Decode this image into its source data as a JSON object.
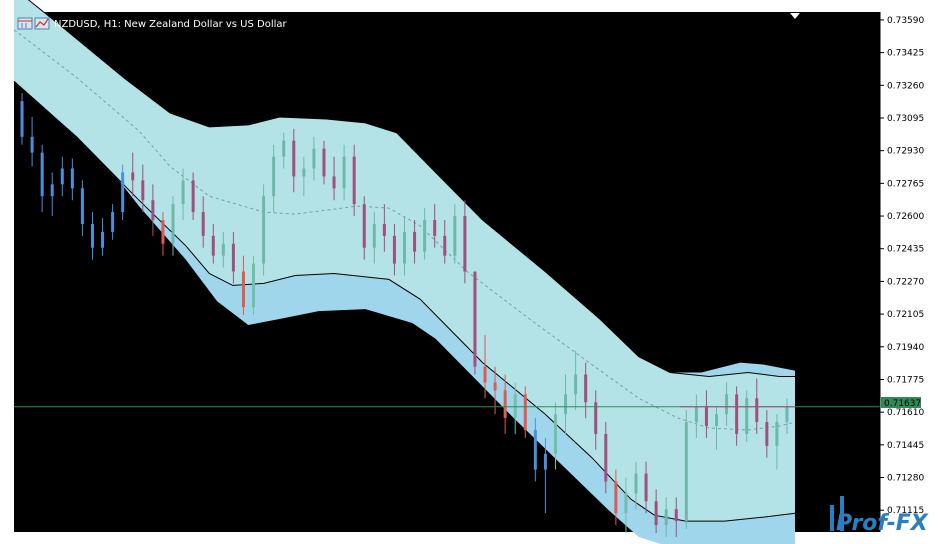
{
  "header": {
    "symbol_info": "NZDUSD, H1:  New Zealand Dollar vs US Dollar"
  },
  "logo": {
    "text": "Prof-FX"
  },
  "icons": {
    "toolbar": "window-icon",
    "chart": "chart-icon"
  },
  "colors": {
    "background": "#000000",
    "outer_band": "#9fd6ec",
    "inner_band": "#b3e3e7",
    "band_line": "#000000",
    "middle_line": "#7c9da0",
    "bull": "#6fbfaa",
    "bear": "#e05a4e",
    "bull_inside": "#6fb7a8",
    "bear_inside": "#a0507a",
    "blue_candle": "#4a90d8",
    "bid_line": "#2e8b57",
    "price_line": "#a0507a",
    "axis_bg": "#ffffff",
    "logo": "#2a7fc1"
  },
  "chart_data": {
    "type": "candlestick",
    "symbol": "NZDUSD",
    "timeframe": "H1",
    "y_ticks": [
      "0.73590",
      "0.73425",
      "0.73260",
      "0.73095",
      "0.72930",
      "0.72765",
      "0.72600",
      "0.72435",
      "0.72270",
      "0.72105",
      "0.71940",
      "0.71775",
      "0.71610",
      "0.71445",
      "0.71280",
      "0.71115"
    ],
    "ylim": [
      0.71005,
      0.7363
    ],
    "current_price": "0.71637",
    "current_price_value": 0.71637,
    "bands": {
      "middle": [
        [
          0,
          0.7354
        ],
        [
          40,
          0.733
        ],
        [
          80,
          0.7303
        ],
        [
          100,
          0.7285
        ],
        [
          125,
          0.727
        ],
        [
          160,
          0.7262
        ],
        [
          180,
          0.7261
        ],
        [
          200,
          0.7263
        ],
        [
          220,
          0.7265
        ],
        [
          240,
          0.7264
        ],
        [
          260,
          0.7255
        ],
        [
          290,
          0.7232
        ],
        [
          330,
          0.7208
        ],
        [
          370,
          0.7185
        ],
        [
          400,
          0.7168
        ],
        [
          425,
          0.7158
        ],
        [
          445,
          0.7153
        ],
        [
          470,
          0.7152
        ],
        [
          490,
          0.7154
        ],
        [
          500,
          0.7156
        ]
      ],
      "inner_upper": [
        [
          0,
          0.7375
        ],
        [
          30,
          0.7356
        ],
        [
          70,
          0.733
        ],
        [
          100,
          0.7312
        ],
        [
          125,
          0.7305
        ],
        [
          150,
          0.7306
        ],
        [
          170,
          0.731
        ],
        [
          200,
          0.7309
        ],
        [
          225,
          0.7307
        ],
        [
          245,
          0.7302
        ],
        [
          270,
          0.7282
        ],
        [
          300,
          0.7258
        ],
        [
          340,
          0.7232
        ],
        [
          375,
          0.7208
        ],
        [
          400,
          0.7189
        ],
        [
          420,
          0.7181
        ],
        [
          445,
          0.7179
        ],
        [
          470,
          0.7181
        ],
        [
          490,
          0.7179
        ],
        [
          500,
          0.7179
        ]
      ],
      "inner_lower": [
        [
          0,
          0.7328
        ],
        [
          40,
          0.73
        ],
        [
          80,
          0.7268
        ],
        [
          110,
          0.7245
        ],
        [
          125,
          0.7231
        ],
        [
          140,
          0.7225
        ],
        [
          160,
          0.7226
        ],
        [
          180,
          0.723
        ],
        [
          205,
          0.7231
        ],
        [
          240,
          0.7228
        ],
        [
          260,
          0.7218
        ],
        [
          275,
          0.7206
        ],
        [
          300,
          0.7186
        ],
        [
          340,
          0.716
        ],
        [
          370,
          0.7138
        ],
        [
          395,
          0.7117
        ],
        [
          410,
          0.7109
        ],
        [
          430,
          0.7106
        ],
        [
          455,
          0.7106
        ],
        [
          480,
          0.7108
        ],
        [
          500,
          0.711
        ]
      ],
      "outer_upper": [
        [
          0,
          0.7366
        ],
        [
          10,
          0.7368
        ],
        [
          30,
          0.735
        ],
        [
          60,
          0.733
        ],
        [
          90,
          0.731
        ],
        [
          120,
          0.7292
        ],
        [
          145,
          0.7285
        ],
        [
          165,
          0.7282
        ],
        [
          190,
          0.7285
        ],
        [
          215,
          0.729
        ],
        [
          235,
          0.729
        ],
        [
          255,
          0.7282
        ],
        [
          280,
          0.7262
        ],
        [
          310,
          0.724
        ],
        [
          345,
          0.7215
        ],
        [
          375,
          0.7196
        ],
        [
          400,
          0.7185
        ],
        [
          420,
          0.7181
        ],
        [
          440,
          0.7181
        ],
        [
          465,
          0.7186
        ],
        [
          480,
          0.7185
        ],
        [
          500,
          0.7182
        ]
      ],
      "outer_lower": [
        [
          0,
          0.7348
        ],
        [
          20,
          0.733
        ],
        [
          50,
          0.7295
        ],
        [
          80,
          0.7265
        ],
        [
          110,
          0.7238
        ],
        [
          130,
          0.7217
        ],
        [
          150,
          0.7205
        ],
        [
          170,
          0.7208
        ],
        [
          195,
          0.7212
        ],
        [
          225,
          0.7213
        ],
        [
          255,
          0.7206
        ],
        [
          270,
          0.7198
        ],
        [
          295,
          0.7178
        ],
        [
          320,
          0.7158
        ],
        [
          350,
          0.7135
        ],
        [
          380,
          0.7112
        ],
        [
          400,
          0.7098
        ],
        [
          420,
          0.7093
        ],
        [
          445,
          0.709
        ],
        [
          470,
          0.709
        ],
        [
          490,
          0.7092
        ],
        [
          500,
          0.7094
        ]
      ]
    },
    "candles_ohlc": [
      [
        0.7318,
        0.7322,
        0.7296,
        0.73
      ],
      [
        0.73,
        0.731,
        0.7285,
        0.7292
      ],
      [
        0.7292,
        0.7296,
        0.7262,
        0.727
      ],
      [
        0.727,
        0.7282,
        0.726,
        0.7276
      ],
      [
        0.7276,
        0.729,
        0.727,
        0.7284
      ],
      [
        0.7284,
        0.7289,
        0.7268,
        0.7274
      ],
      [
        0.7274,
        0.7278,
        0.725,
        0.7256
      ],
      [
        0.7256,
        0.7262,
        0.7238,
        0.7244
      ],
      [
        0.7244,
        0.7259,
        0.724,
        0.7252
      ],
      [
        0.7252,
        0.7266,
        0.7248,
        0.7262
      ],
      [
        0.7262,
        0.7286,
        0.7258,
        0.7282
      ],
      [
        0.7282,
        0.7292,
        0.727,
        0.7278
      ],
      [
        0.7278,
        0.7286,
        0.7262,
        0.7268
      ],
      [
        0.7268,
        0.7276,
        0.725,
        0.7258
      ],
      [
        0.7258,
        0.7262,
        0.724,
        0.7246
      ],
      [
        0.7246,
        0.727,
        0.724,
        0.7266
      ],
      [
        0.7266,
        0.7284,
        0.7258,
        0.7278
      ],
      [
        0.7278,
        0.7282,
        0.7258,
        0.7262
      ],
      [
        0.7262,
        0.727,
        0.7244,
        0.725
      ],
      [
        0.725,
        0.7256,
        0.7236,
        0.724
      ],
      [
        0.724,
        0.7252,
        0.7234,
        0.7246
      ],
      [
        0.7246,
        0.7252,
        0.7226,
        0.7232
      ],
      [
        0.7232,
        0.724,
        0.721,
        0.7214
      ],
      [
        0.7214,
        0.724,
        0.721,
        0.7236
      ],
      [
        0.7236,
        0.7276,
        0.723,
        0.727
      ],
      [
        0.727,
        0.7296,
        0.7262,
        0.729
      ],
      [
        0.729,
        0.7302,
        0.7284,
        0.7298
      ],
      [
        0.7298,
        0.7304,
        0.7272,
        0.728
      ],
      [
        0.728,
        0.729,
        0.727,
        0.7284
      ],
      [
        0.7284,
        0.73,
        0.7278,
        0.7294
      ],
      [
        0.7294,
        0.7298,
        0.7276,
        0.728
      ],
      [
        0.728,
        0.729,
        0.7268,
        0.7274
      ],
      [
        0.7274,
        0.7296,
        0.7268,
        0.729
      ],
      [
        0.729,
        0.7296,
        0.726,
        0.7266
      ],
      [
        0.7266,
        0.727,
        0.7238,
        0.7244
      ],
      [
        0.7244,
        0.7262,
        0.7236,
        0.7256
      ],
      [
        0.7256,
        0.7266,
        0.7242,
        0.725
      ],
      [
        0.725,
        0.7256,
        0.723,
        0.7236
      ],
      [
        0.7236,
        0.726,
        0.723,
        0.7252
      ],
      [
        0.7252,
        0.7258,
        0.7236,
        0.7242
      ],
      [
        0.7242,
        0.7264,
        0.7238,
        0.7258
      ],
      [
        0.7258,
        0.7266,
        0.7244,
        0.725
      ],
      [
        0.725,
        0.7258,
        0.7236,
        0.724
      ],
      [
        0.724,
        0.7266,
        0.7236,
        0.726
      ],
      [
        0.726,
        0.7268,
        0.7226,
        0.7232
      ],
      [
        0.7232,
        0.719,
        0.718,
        0.7184
      ],
      [
        0.7184,
        0.72,
        0.7168,
        0.7176
      ],
      [
        0.7176,
        0.7184,
        0.716,
        0.7172
      ],
      [
        0.7172,
        0.718,
        0.715,
        0.7158
      ],
      [
        0.7158,
        0.7176,
        0.715,
        0.717
      ],
      [
        0.717,
        0.7174,
        0.7148,
        0.7152
      ],
      [
        0.7152,
        0.7158,
        0.7126,
        0.7132
      ],
      [
        0.7132,
        0.7148,
        0.711,
        0.714
      ],
      [
        0.714,
        0.7166,
        0.7132,
        0.716
      ],
      [
        0.716,
        0.718,
        0.715,
        0.717
      ],
      [
        0.717,
        0.7192,
        0.7162,
        0.718
      ],
      [
        0.718,
        0.7186,
        0.7158,
        0.7166
      ],
      [
        0.7166,
        0.7172,
        0.7142,
        0.715
      ],
      [
        0.715,
        0.7156,
        0.712,
        0.7126
      ],
      [
        0.7126,
        0.7132,
        0.7104,
        0.711
      ],
      [
        0.711,
        0.7128,
        0.71,
        0.712
      ],
      [
        0.712,
        0.7136,
        0.7112,
        0.713
      ],
      [
        0.713,
        0.7136,
        0.711,
        0.7116
      ],
      [
        0.7116,
        0.7122,
        0.71,
        0.7104
      ],
      [
        0.7104,
        0.7118,
        0.7098,
        0.7112
      ],
      [
        0.7112,
        0.7118,
        0.7098,
        0.7106
      ],
      [
        0.7106,
        0.7162,
        0.7102,
        0.7156
      ],
      [
        0.7156,
        0.717,
        0.7148,
        0.7164
      ],
      [
        0.7164,
        0.7172,
        0.7148,
        0.7154
      ],
      [
        0.7154,
        0.7164,
        0.7142,
        0.716
      ],
      [
        0.716,
        0.7176,
        0.7154,
        0.717
      ],
      [
        0.717,
        0.7174,
        0.7144,
        0.715
      ],
      [
        0.715,
        0.7172,
        0.7146,
        0.7168
      ],
      [
        0.7168,
        0.7178,
        0.715,
        0.7156
      ],
      [
        0.7156,
        0.7162,
        0.7138,
        0.7144
      ],
      [
        0.7144,
        0.716,
        0.7132,
        0.7156
      ],
      [
        0.7156,
        0.7168,
        0.715,
        0.7164
      ]
    ]
  }
}
